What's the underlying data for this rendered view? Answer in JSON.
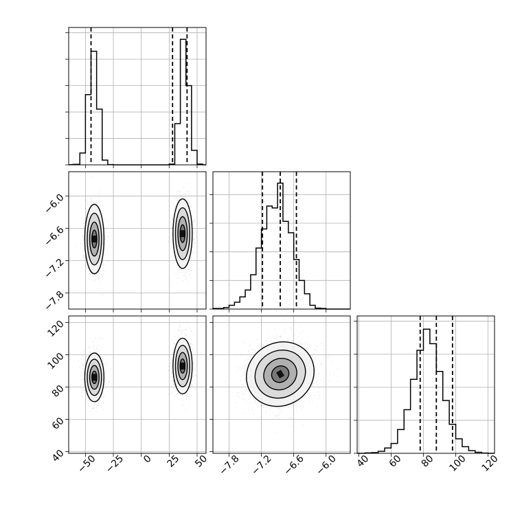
{
  "figure": {
    "type": "corner-plot"
  },
  "chart_data": [
    {
      "id": "hist-p0",
      "type": "bar",
      "panel": "histogram",
      "param": 0,
      "bin_edges": [
        -60,
        -55,
        -50,
        -45,
        -40,
        -35,
        -30,
        -25,
        -20,
        -15,
        -10,
        -5,
        0,
        5,
        10,
        15,
        20,
        25,
        30,
        35,
        40,
        45,
        50,
        55,
        60
      ],
      "counts": [
        2,
        45,
        266,
        430,
        211,
        18,
        1,
        0,
        0,
        0,
        0,
        0,
        0,
        0,
        0,
        0,
        0,
        3,
        156,
        475,
        300,
        55,
        3,
        0
      ],
      "quantiles": [
        -45,
        28,
        41
      ],
      "xlim": [
        -65,
        58
      ],
      "ylim": [
        0,
        520
      ],
      "yticks": [
        0,
        100,
        200,
        300,
        400,
        500
      ],
      "xticks": [
        -50,
        -25,
        0,
        25,
        50
      ]
    },
    {
      "id": "scatter-p1-p0",
      "type": "scatter",
      "panel": "2d-density",
      "x_param": 0,
      "y_param": 1,
      "clusters": [
        {
          "cx": -42,
          "cy": -6.8,
          "sx": 4,
          "sy": 0.3,
          "n": 1400,
          "rot": 0
        },
        {
          "cx": 37,
          "cy": -6.7,
          "sx": 4,
          "sy": 0.3,
          "n": 1400,
          "rot": 0
        }
      ],
      "xlim": [
        -65,
        58
      ],
      "ylim": [
        -8.1,
        -5.55
      ],
      "yticks": [
        -7.8,
        -7.2,
        -6.6,
        -6.0
      ],
      "yticklabels": [
        "−7.8",
        "−7.2",
        "−6.6",
        "−6.0"
      ],
      "xticks": [
        -50,
        -25,
        0,
        25,
        50
      ]
    },
    {
      "id": "hist-p1",
      "type": "bar",
      "panel": "histogram",
      "param": 1,
      "bin_edges": [
        -8.1,
        -8.0,
        -7.9,
        -7.8,
        -7.7,
        -7.6,
        -7.5,
        -7.4,
        -7.3,
        -7.2,
        -7.1,
        -7.0,
        -6.9,
        -6.8,
        -6.7,
        -6.6,
        -6.5,
        -6.4,
        -6.3,
        -6.2,
        -6.1,
        -6.0,
        -5.9,
        -5.8,
        -5.7
      ],
      "counts": [
        3,
        3,
        8,
        20,
        36,
        64,
        100,
        180,
        320,
        420,
        540,
        530,
        660,
        460,
        400,
        260,
        150,
        80,
        20,
        5,
        3,
        0,
        0,
        0
      ],
      "quantiles": [
        -7.18,
        -6.85,
        -6.55
      ],
      "xlim": [
        -8.1,
        -5.55
      ],
      "ylim": [
        0,
        720
      ],
      "yticks": [
        0,
        150,
        300,
        450,
        600
      ],
      "xticks": [
        -7.8,
        -7.2,
        -6.6,
        -6.0
      ]
    },
    {
      "id": "scatter-p2-p0",
      "type": "scatter",
      "panel": "2d-density",
      "x_param": 0,
      "y_param": 2,
      "clusters": [
        {
          "cx": -42,
          "cy": 86,
          "sx": 4,
          "sy": 7,
          "n": 1400,
          "rot": 0
        },
        {
          "cx": 37,
          "cy": 93,
          "sx": 4,
          "sy": 8,
          "n": 1400,
          "rot": 0
        }
      ],
      "xlim": [
        -65,
        58
      ],
      "ylim": [
        39,
        124
      ],
      "yticks": [
        40,
        60,
        80,
        100,
        120
      ],
      "xticks": [
        -50,
        -25,
        0,
        25,
        50
      ],
      "xticklabels": [
        "−50",
        "−25",
        "0",
        "25",
        "50"
      ]
    },
    {
      "id": "scatter-p2-p1",
      "type": "scatter",
      "panel": "2d-density",
      "x_param": 1,
      "y_param": 2,
      "clusters": [
        {
          "cx": -6.85,
          "cy": 88,
          "sx": 0.3,
          "sy": 9,
          "n": 2800,
          "rot": -0.55
        }
      ],
      "xlim": [
        -8.1,
        -5.55
      ],
      "ylim": [
        39,
        124
      ],
      "yticks": [
        40,
        60,
        80,
        100,
        120
      ],
      "xticks": [
        -7.8,
        -7.2,
        -6.6,
        -6.0
      ],
      "xticklabels": [
        "−7.8",
        "−7.2",
        "−6.6",
        "−6.0"
      ]
    },
    {
      "id": "hist-p2",
      "type": "bar",
      "panel": "histogram",
      "param": 2,
      "bin_edges": [
        40,
        44,
        48,
        52,
        56,
        60,
        64,
        68,
        72,
        76,
        80,
        84,
        88,
        92,
        96,
        100,
        104,
        108,
        112,
        116,
        120,
        124
      ],
      "counts": [
        0,
        3,
        5,
        15,
        40,
        75,
        180,
        330,
        560,
        780,
        940,
        830,
        620,
        400,
        220,
        110,
        50,
        20,
        8,
        2,
        0
      ],
      "quantiles": [
        78,
        88,
        98
      ],
      "xlim": [
        39,
        124
      ],
      "ylim": [
        0,
        1040
      ],
      "yticks": [
        0,
        250,
        500,
        750,
        1000
      ],
      "xticks": [
        40,
        60,
        80,
        100,
        120
      ],
      "xticklabels": [
        "40",
        "60",
        "80",
        "100",
        "120"
      ]
    }
  ]
}
